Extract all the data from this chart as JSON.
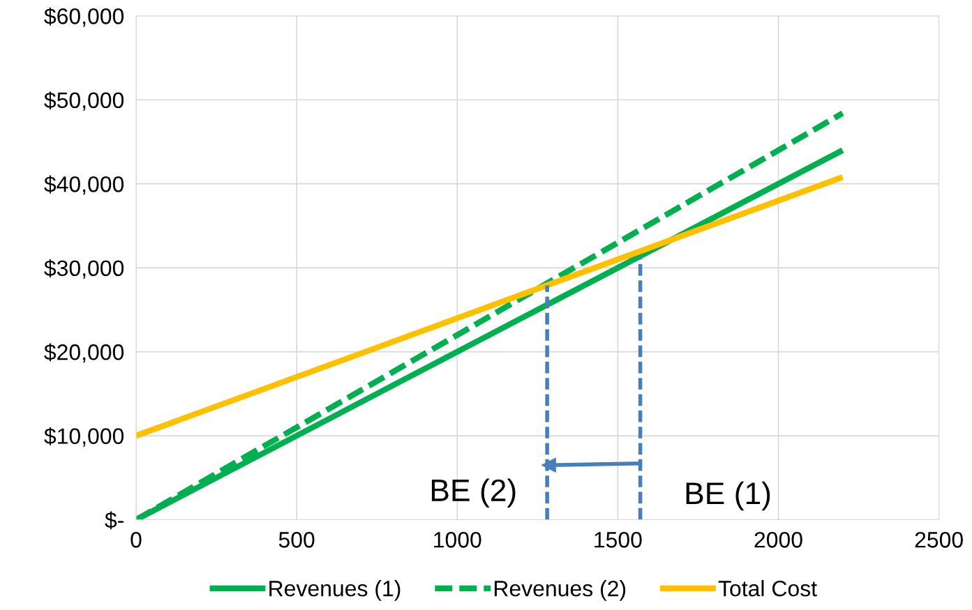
{
  "chart_data": {
    "type": "line",
    "x": [
      0,
      2200
    ],
    "series": [
      {
        "name": "Revenues (1)",
        "color": "#00b050",
        "values": [
          0,
          44000
        ],
        "line_style": "solid"
      },
      {
        "name": "Revenues (2)",
        "color": "#00b050",
        "values": [
          0,
          48400
        ],
        "line_style": "dashed"
      },
      {
        "name": "Total Cost",
        "color": "#ffc000",
        "values": [
          10000,
          40800
        ],
        "line_style": "solid"
      },
      {
        "color": "#4a7ebb",
        "x": [
          1280,
          1280
        ],
        "values": [
          0,
          27900
        ],
        "line_style": "dashed"
      },
      {
        "color": "#4a7ebb",
        "x": [
          1570,
          1570
        ],
        "values": [
          0,
          31300
        ],
        "line_style": "dashed"
      },
      {
        "color": "#4a7ebb",
        "x": [
          1570,
          1285
        ],
        "values": [
          6700,
          6500
        ],
        "line_style": "solid",
        "marker": "triangle"
      }
    ],
    "xlim": [
      0,
      2500
    ],
    "xticks": [
      0,
      500,
      1000,
      1500,
      2000,
      2500
    ],
    "ylim": [
      0,
      60000
    ],
    "yticks": [
      {
        "value": 0,
        "label": "$-"
      },
      {
        "value": 10000,
        "label": "$10,000"
      },
      {
        "value": 20000,
        "label": "$20,000"
      },
      {
        "value": 30000,
        "label": "$30,000"
      },
      {
        "value": 40000,
        "label": "$40,000"
      },
      {
        "value": 50000,
        "label": "$50,000"
      },
      {
        "value": 60000,
        "label": "$60,000"
      }
    ],
    "annotations": [
      "BE (2)",
      "BE (1)"
    ],
    "grid": true,
    "legend": "bottom"
  }
}
